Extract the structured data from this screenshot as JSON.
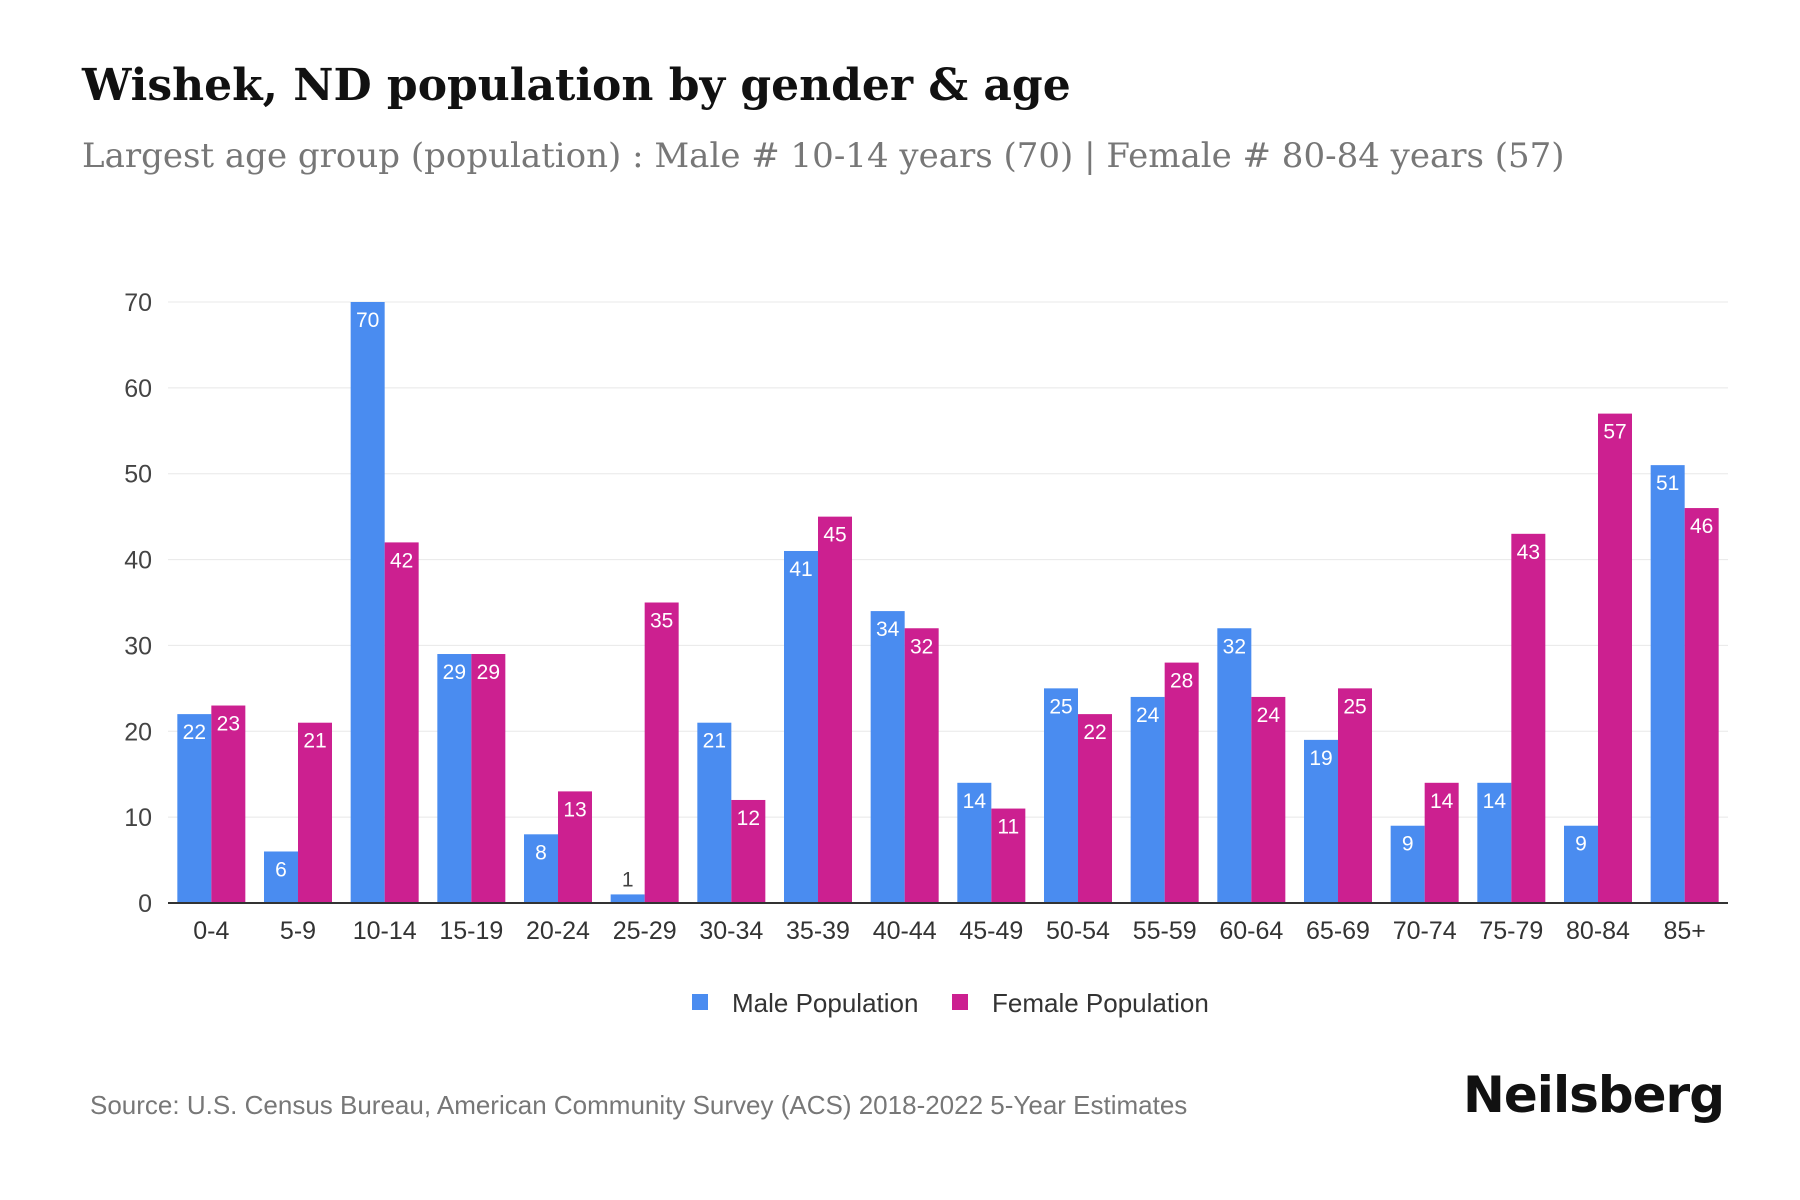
{
  "header": {
    "title": "Wishek, ND population by gender & age",
    "subtitle": "Largest age group (population) : Male # 10-14 years (70) | Female # 80-84 years (57)"
  },
  "footer": {
    "source": "Source: U.S. Census Bureau, American Community Survey (ACS) 2018-2022 5-Year Estimates",
    "brand": "Neilsberg"
  },
  "colors": {
    "male": "#4a8cf0",
    "female": "#cc2090"
  },
  "chart_data": {
    "type": "bar",
    "title": "Wishek, ND population by gender & age",
    "xlabel": "",
    "ylabel": "",
    "ylim": [
      0,
      70
    ],
    "yticks": [
      0,
      10,
      20,
      30,
      40,
      50,
      60,
      70
    ],
    "grid": true,
    "legend_position": "bottom-center",
    "categories": [
      "0-4",
      "5-9",
      "10-14",
      "15-19",
      "20-24",
      "25-29",
      "30-34",
      "35-39",
      "40-44",
      "45-49",
      "50-54",
      "55-59",
      "60-64",
      "65-69",
      "70-74",
      "75-79",
      "80-84",
      "85+"
    ],
    "series": [
      {
        "name": "Male Population",
        "values": [
          22,
          6,
          70,
          29,
          8,
          1,
          21,
          41,
          34,
          14,
          25,
          24,
          32,
          19,
          9,
          14,
          9,
          51
        ]
      },
      {
        "name": "Female Population",
        "values": [
          23,
          21,
          42,
          29,
          13,
          35,
          12,
          45,
          32,
          11,
          22,
          28,
          24,
          25,
          14,
          43,
          57,
          46
        ]
      }
    ]
  }
}
